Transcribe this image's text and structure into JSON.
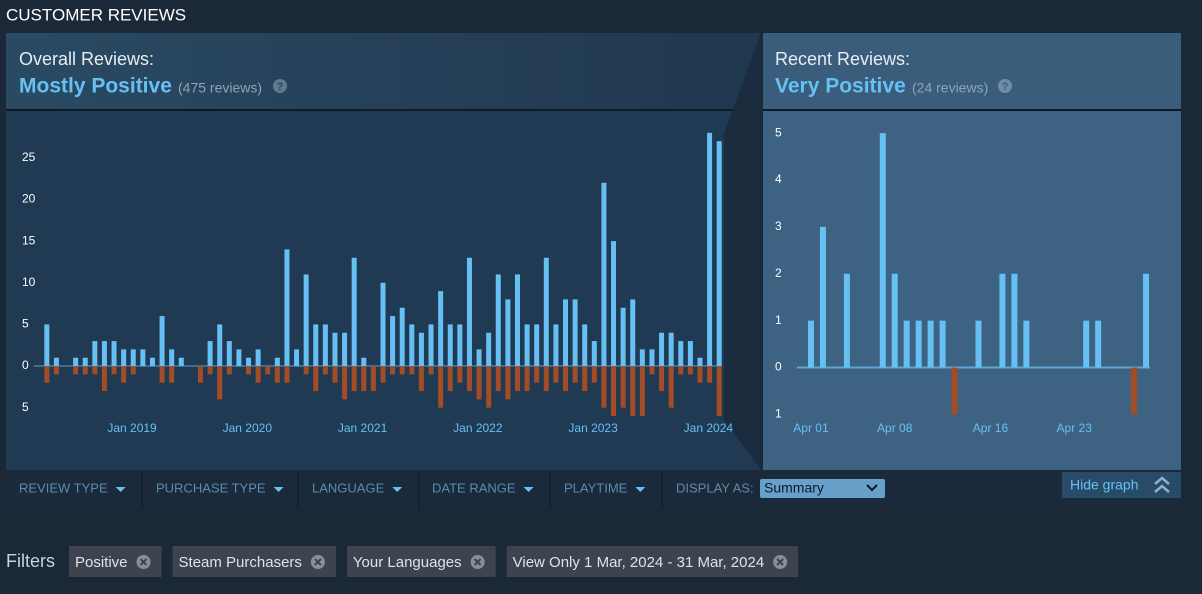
{
  "header": {
    "title": "CUSTOMER REVIEWS"
  },
  "overall": {
    "label": "Overall Reviews:",
    "rating": "Mostly Positive",
    "count": "(475 reviews)",
    "help": "?"
  },
  "recent": {
    "label": "Recent Reviews:",
    "rating": "Very Positive",
    "count": "(24 reviews)",
    "help": "?"
  },
  "chart_data": [
    {
      "type": "bar",
      "categories": [
        null,
        null,
        null,
        null,
        null,
        null,
        null,
        "Jan 2019",
        null,
        null,
        null,
        null,
        null,
        null,
        null,
        null,
        null,
        null,
        null,
        "Jan 2020",
        null,
        null,
        null,
        null,
        null,
        null,
        null,
        null,
        null,
        null,
        null,
        "Jan 2021",
        null,
        null,
        null,
        null,
        null,
        null,
        null,
        null,
        null,
        null,
        null,
        "Jan 2022",
        null,
        null,
        null,
        null,
        null,
        null,
        null,
        null,
        null,
        null,
        null,
        "Jan 2023",
        null,
        null,
        null,
        null,
        null,
        null,
        null,
        null,
        null,
        null,
        null,
        "Jan 2024",
        null,
        null,
        null
      ],
      "series": [
        {
          "color": "#66c0f4",
          "values": [
            5,
            1,
            0,
            1,
            1,
            3,
            3,
            3,
            2,
            2,
            2,
            1,
            6,
            2,
            1,
            0,
            0,
            3,
            5,
            3,
            2,
            1,
            2,
            0,
            1,
            14,
            2,
            11,
            5,
            5,
            4,
            4,
            13,
            1,
            0,
            10,
            6,
            7,
            5,
            4,
            5,
            9,
            5,
            5,
            13,
            2,
            4,
            11,
            8,
            11,
            5,
            5,
            13,
            5,
            8,
            8,
            5,
            3,
            22,
            15,
            7,
            8,
            2,
            2,
            4,
            4,
            3,
            3,
            1,
            28,
            27
          ]
        },
        {
          "color": "#a34c25",
          "values": [
            -2,
            -1,
            0,
            -1,
            -1,
            -1,
            -3,
            -1,
            -2,
            -1,
            0,
            0,
            -2,
            -2,
            0,
            0,
            -2,
            -1,
            -4,
            -1,
            0,
            -1,
            -2,
            -1,
            -2,
            -2,
            0,
            -1,
            -3,
            -1,
            -2,
            -4,
            -3,
            -3,
            -3,
            -2,
            -1,
            -1,
            -1,
            -3,
            -1,
            -5,
            -3,
            -2,
            -3,
            -4,
            -5,
            -3,
            -4,
            -3,
            -3,
            -2,
            -3,
            -2,
            -3,
            -2,
            -3,
            -2,
            -5,
            -6,
            -5,
            -6,
            -6,
            -1,
            -3,
            -5,
            -1,
            -1,
            -2,
            -2,
            -6
          ]
        }
      ],
      "ylim": [
        -12,
        30.5
      ],
      "yticks": [
        {
          "value": -5,
          "label": "5"
        },
        0,
        5,
        10,
        15,
        20,
        25
      ]
    },
    {
      "type": "bar",
      "categories": [
        "Apr 01",
        null,
        null,
        null,
        null,
        null,
        null,
        "Apr 08",
        null,
        null,
        null,
        null,
        null,
        null,
        null,
        "Apr 16",
        null,
        null,
        null,
        null,
        null,
        null,
        "Apr 23",
        null,
        null,
        null,
        null,
        null,
        null
      ],
      "series": [
        {
          "color": "#66c0f4",
          "values": [
            1,
            3,
            0,
            2,
            0,
            0,
            5,
            2,
            1,
            1,
            1,
            1,
            0,
            0,
            1,
            0,
            2,
            2,
            1,
            0,
            0,
            0,
            0,
            1,
            1,
            0,
            0,
            0,
            2
          ]
        },
        {
          "color": "#a34c25",
          "values": [
            0,
            0,
            0,
            0,
            0,
            0,
            0,
            0,
            0,
            0,
            0,
            0,
            -1,
            0,
            0,
            0,
            0,
            0,
            0,
            0,
            0,
            0,
            0,
            0,
            0,
            0,
            0,
            -1,
            0
          ]
        }
      ],
      "ylim": [
        -2.1,
        5.45
      ],
      "yticks": [
        {
          "value": -1,
          "label": "1"
        },
        0,
        1,
        2,
        3,
        4,
        5
      ]
    }
  ],
  "menu": {
    "items": [
      "REVIEW TYPE",
      "PURCHASE TYPE",
      "LANGUAGE",
      "DATE RANGE",
      "PLAYTIME"
    ],
    "display_label": "DISPLAY AS:",
    "display_value": "Summary",
    "hide_graph": "Hide graph"
  },
  "filters": {
    "label": "Filters",
    "chips": [
      "Positive",
      "Steam Purchasers",
      "Your Languages",
      "View Only 1 Mar, 2024 - 31 Mar, 2024"
    ]
  }
}
